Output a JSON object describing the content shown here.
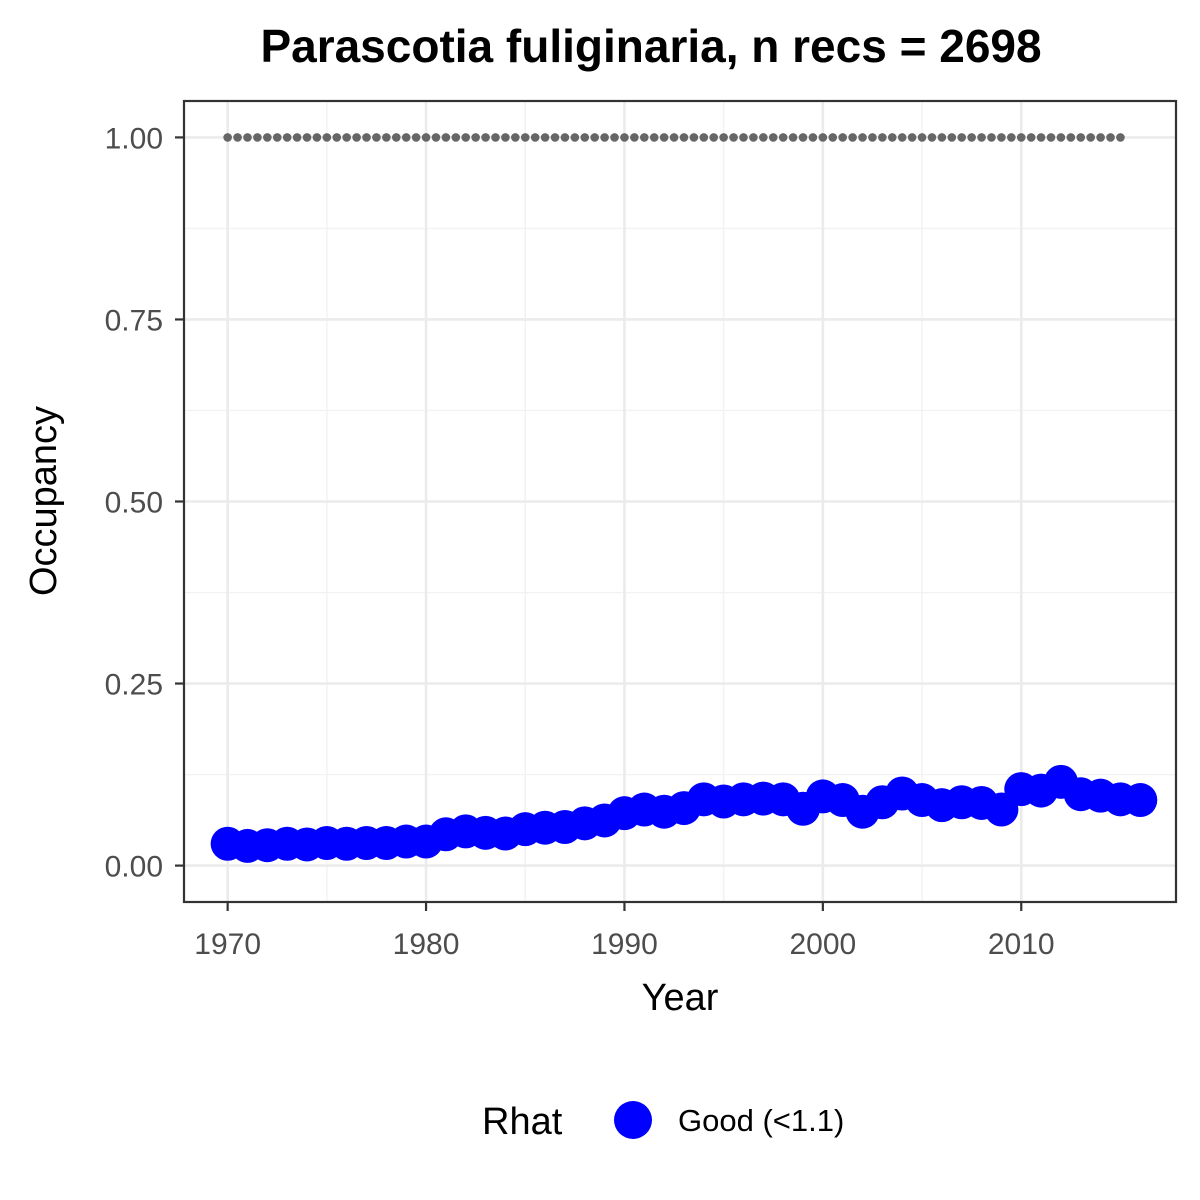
{
  "chart_data": {
    "type": "scatter",
    "title": "Parascotia fuliginaria, n recs = 2698",
    "xlabel": "Year",
    "ylabel": "Occupancy",
    "xlim": [
      1967.8,
      2017.8
    ],
    "ylim": [
      -0.05,
      1.05
    ],
    "x_ticks": [
      1970,
      1980,
      1990,
      2000,
      2010
    ],
    "x_tick_labels": [
      "1970",
      "1980",
      "1990",
      "2000",
      "2010"
    ],
    "y_ticks": [
      0.0,
      0.25,
      0.5,
      0.75,
      1.0
    ],
    "y_tick_labels": [
      "0.00",
      "0.25",
      "0.50",
      "0.75",
      "1.00"
    ],
    "grid": true,
    "legend": {
      "title": "Rhat",
      "position": "bottom",
      "entries": [
        {
          "label": "Good (<1.1)",
          "color": "#0000ff"
        }
      ]
    },
    "series": [
      {
        "name": "Good (<1.1)",
        "style": "large-points",
        "color": "#0000ff",
        "x": [
          1970,
          1971,
          1972,
          1973,
          1974,
          1975,
          1976,
          1977,
          1978,
          1979,
          1980,
          1981,
          1982,
          1983,
          1984,
          1985,
          1986,
          1987,
          1988,
          1989,
          1990,
          1991,
          1992,
          1993,
          1994,
          1995,
          1996,
          1997,
          1998,
          1999,
          2000,
          2001,
          2002,
          2003,
          2004,
          2005,
          2006,
          2007,
          2008,
          2009,
          2010,
          2011,
          2012,
          2013,
          2014,
          2015,
          2016
        ],
        "y": [
          0.03,
          0.027,
          0.028,
          0.03,
          0.029,
          0.031,
          0.03,
          0.031,
          0.031,
          0.033,
          0.033,
          0.043,
          0.047,
          0.045,
          0.044,
          0.05,
          0.052,
          0.053,
          0.058,
          0.062,
          0.072,
          0.077,
          0.074,
          0.079,
          0.091,
          0.088,
          0.091,
          0.092,
          0.091,
          0.078,
          0.095,
          0.09,
          0.074,
          0.087,
          0.099,
          0.09,
          0.083,
          0.087,
          0.086,
          0.077,
          0.105,
          0.103,
          0.115,
          0.098,
          0.096,
          0.091,
          0.09
        ]
      },
      {
        "name": "",
        "style": "dotted-line",
        "color": "#666666",
        "x": [
          1970,
          1971,
          1972,
          1973,
          1974,
          1975,
          1976,
          1977,
          1978,
          1979,
          1980,
          1981,
          1982,
          1983,
          1984,
          1985,
          1986,
          1987,
          1988,
          1989,
          1990,
          1991,
          1992,
          1993,
          1994,
          1995,
          1996,
          1997,
          1998,
          1999,
          2000,
          2001,
          2002,
          2003,
          2004,
          2005,
          2006,
          2007,
          2008,
          2009,
          2010,
          2011,
          2012,
          2013,
          2014,
          2015
        ],
        "y": [
          1,
          1,
          1,
          1,
          1,
          1,
          1,
          1,
          1,
          1,
          1,
          1,
          1,
          1,
          1,
          1,
          1,
          1,
          1,
          1,
          1,
          1,
          1,
          1,
          1,
          1,
          1,
          1,
          1,
          1,
          1,
          1,
          1,
          1,
          1,
          1,
          1,
          1,
          1,
          1,
          1,
          1,
          1,
          1,
          1,
          1
        ]
      }
    ]
  }
}
